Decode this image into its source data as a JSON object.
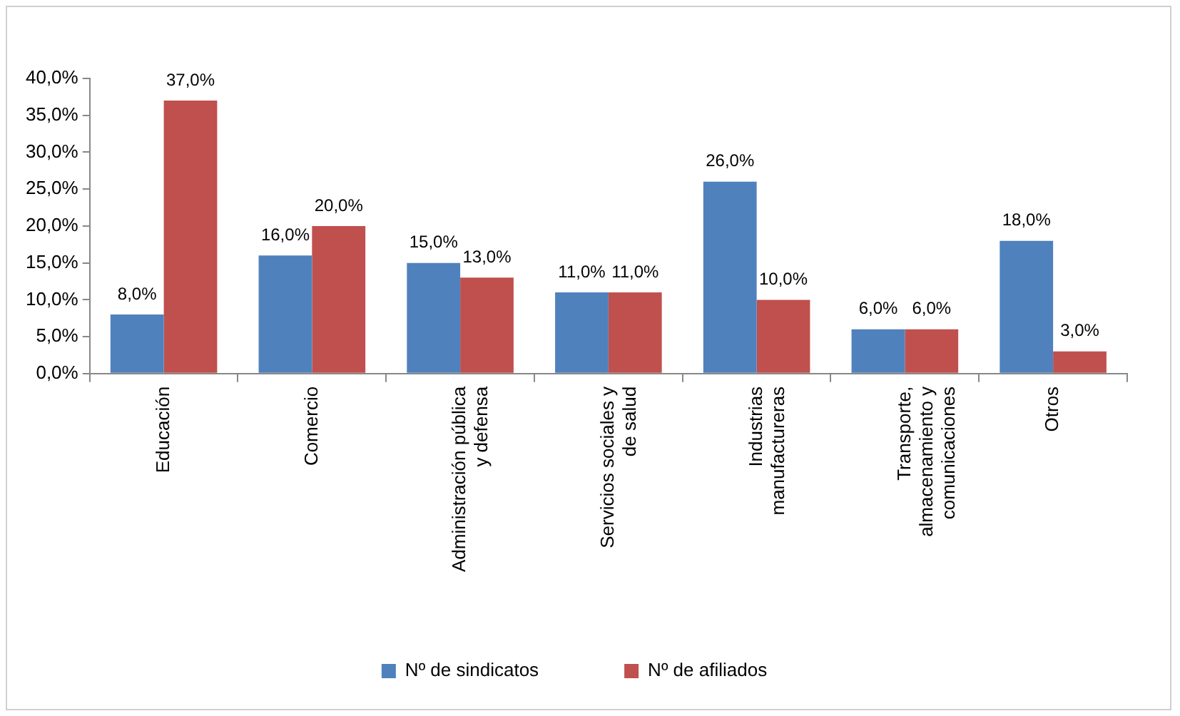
{
  "chart_data": {
    "type": "bar",
    "categories": [
      "Educación",
      "Comercio",
      "Administración pública y defensa",
      "Servicios sociales y de salud",
      "Industrias manufactureras",
      "Transporte, almacenamiento y comunicaciones",
      "Otros"
    ],
    "series": [
      {
        "name": "Nº de sindicatos",
        "color": "#4f81bd",
        "values": [
          8,
          16,
          15,
          11,
          26,
          6,
          18
        ],
        "value_labels": [
          "8,0%",
          "16,0%",
          "15,0%",
          "11,0%",
          "26,0%",
          "6,0%",
          "18,0%"
        ]
      },
      {
        "name": "Nº de afiliados",
        "color": "#c0504d",
        "values": [
          37,
          20,
          13,
          11,
          10,
          6,
          3
        ],
        "value_labels": [
          "37,0%",
          "20,0%",
          "13,0%",
          "11,0%",
          "10,0%",
          "6,0%",
          "3,0%"
        ]
      }
    ],
    "ylim": [
      0,
      40
    ],
    "yticks": [
      {
        "value": 0,
        "label": "0,0%"
      },
      {
        "value": 5,
        "label": "5,0%"
      },
      {
        "value": 10,
        "label": "10,0%"
      },
      {
        "value": 15,
        "label": "15,0%"
      },
      {
        "value": 20,
        "label": "20,0%"
      },
      {
        "value": 25,
        "label": "25,0%"
      },
      {
        "value": 30,
        "label": "30,0%"
      },
      {
        "value": 35,
        "label": "35,0%"
      },
      {
        "value": 40,
        "label": "40,0%"
      }
    ],
    "grid": false,
    "legend": "bottom"
  }
}
